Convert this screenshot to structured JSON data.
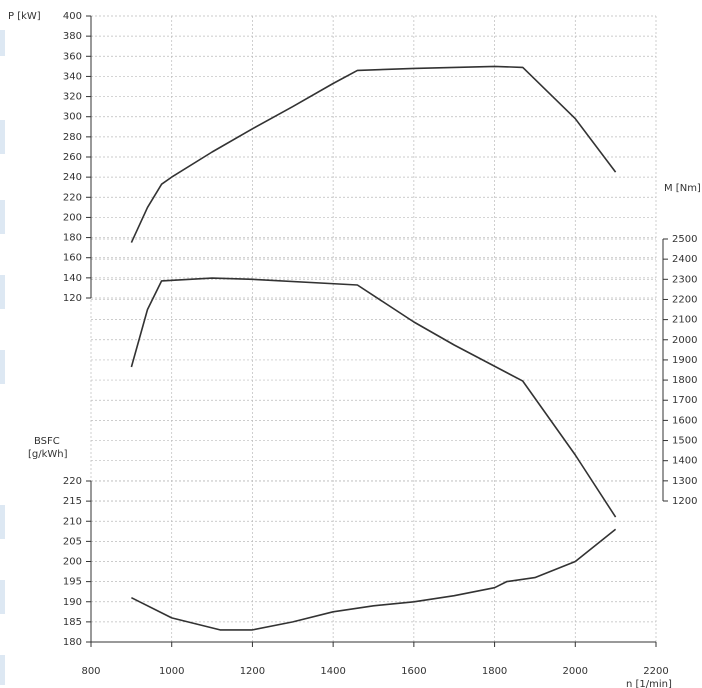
{
  "chart_data": {
    "type": "line",
    "xlabel": "n [1/min]",
    "xlim": [
      800,
      2200
    ],
    "xticks": [
      800,
      1000,
      1200,
      1400,
      1600,
      1800,
      2000,
      2200
    ],
    "ylabel": "P [kW]",
    "ylim": [
      120,
      400
    ],
    "yticks": [
      120,
      140,
      160,
      180,
      200,
      220,
      240,
      260,
      280,
      300,
      320,
      340,
      360,
      380,
      400
    ],
    "y2label": "M [Nm]",
    "y2lim": [
      1200,
      2500
    ],
    "y2ticks": [
      1200,
      1300,
      1400,
      1500,
      1600,
      1700,
      1800,
      1900,
      2000,
      2100,
      2200,
      2300,
      2400,
      2500
    ],
    "y3label": [
      "BSFC",
      "[g/kWh]"
    ],
    "y3lim": [
      180,
      220
    ],
    "y3ticks": [
      180,
      185,
      190,
      195,
      200,
      205,
      210,
      215,
      220
    ],
    "grid": true,
    "series": [
      {
        "axis": "y",
        "color": "#333333",
        "x": [
          900,
          940,
          975,
          1000,
          1100,
          1200,
          1300,
          1400,
          1460,
          1600,
          1700,
          1800,
          1870,
          2000,
          2100
        ],
        "values": [
          175,
          210,
          233,
          240,
          265,
          288,
          310,
          333,
          346,
          348,
          349,
          350,
          349,
          298,
          245
        ]
      },
      {
        "axis": "y2",
        "color": "#333333",
        "x": [
          900,
          940,
          975,
          1100,
          1200,
          1460,
          1600,
          1700,
          1870,
          2000,
          2100
        ],
        "values": [
          1865,
          2150,
          2292,
          2306,
          2300,
          2272,
          2088,
          1974,
          1795,
          1428,
          1120
        ]
      },
      {
        "axis": "y3",
        "color": "#333333",
        "x": [
          900,
          1000,
          1120,
          1200,
          1300,
          1400,
          1500,
          1600,
          1700,
          1800,
          1830,
          1900,
          2000,
          2100
        ],
        "values": [
          191,
          186,
          183,
          183,
          185,
          187.5,
          189,
          190,
          191.5,
          193.5,
          195,
          196,
          200,
          208
        ]
      }
    ]
  }
}
